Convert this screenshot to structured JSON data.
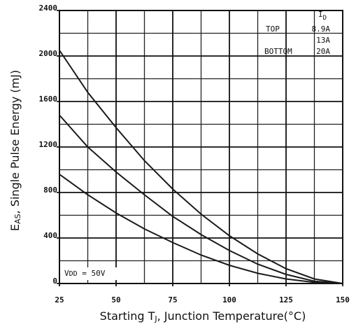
{
  "chart_data": {
    "type": "line",
    "ylabel": {
      "main": "E",
      "sub": "AS",
      "rest": ", Single Pulse Energy (mJ)"
    },
    "xlabel": {
      "main": "Starting T",
      "sub": "J",
      "rest": ", Junction Temperature(°C)"
    },
    "x": [
      25,
      37.5,
      50,
      62.5,
      75,
      87.5,
      100,
      112.5,
      125,
      137.5,
      150
    ],
    "series": [
      {
        "name": "8.9A",
        "color": "#1a1a1a",
        "values": [
          2050,
          1680,
          1370,
          1080,
          830,
          610,
          420,
          260,
          130,
          40,
          0
        ]
      },
      {
        "name": "13A",
        "color": "#1a1a1a",
        "values": [
          1480,
          1200,
          980,
          780,
          590,
          430,
          290,
          170,
          80,
          20,
          0
        ]
      },
      {
        "name": "20A",
        "color": "#1a1a1a",
        "values": [
          960,
          780,
          620,
          480,
          360,
          250,
          160,
          90,
          40,
          10,
          0
        ]
      }
    ],
    "legend": {
      "title": {
        "main": "I",
        "sub": "D"
      },
      "top": "TOP",
      "bottom": "BOTTOM"
    },
    "annotation": {
      "main": "V",
      "sub": "DD",
      "rest": " = 50V"
    },
    "xlim": [
      25,
      150
    ],
    "ylim": [
      0,
      2400
    ],
    "xticks": [
      25,
      50,
      75,
      100,
      125,
      150
    ],
    "yticks": [
      0,
      400,
      800,
      1200,
      1600,
      2000,
      2400
    ],
    "minor_xticks": [
      37.5,
      62.5,
      87.5,
      112.5,
      137.5
    ],
    "minor_yticks": [
      200,
      600,
      1000,
      1400,
      1800,
      2200
    ],
    "grid": true
  }
}
